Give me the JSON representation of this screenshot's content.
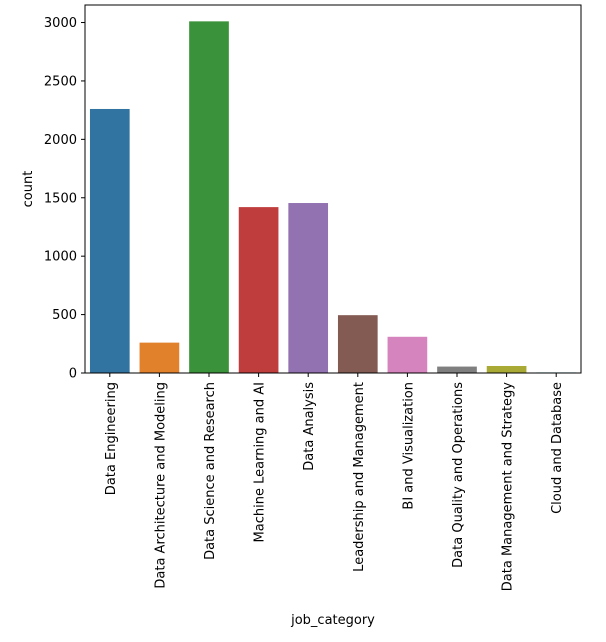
{
  "chart_data": {
    "type": "bar",
    "title": "",
    "xlabel": "job_category",
    "ylabel": "count",
    "ylim": [
      0,
      3150
    ],
    "yticks": [
      0,
      500,
      1000,
      1500,
      2000,
      2500,
      3000
    ],
    "grid": false,
    "legend": "none",
    "categories": [
      "Data Engineering",
      "Data Architecture and Modeling",
      "Data Science and Research",
      "Machine Learning and AI",
      "Data Analysis",
      "Leadership and Management",
      "BI and Visualization",
      "Data Quality and Operations",
      "Data Management and Strategy",
      "Cloud and Database"
    ],
    "values": [
      2260,
      260,
      3010,
      1420,
      1455,
      495,
      310,
      55,
      60,
      5
    ],
    "colors": [
      "#3274a1",
      "#e1812c",
      "#3a923a",
      "#c03d3e",
      "#9372b2",
      "#845b53",
      "#d684bd",
      "#7f7f7f",
      "#a9aa35",
      "#2ebece"
    ]
  }
}
